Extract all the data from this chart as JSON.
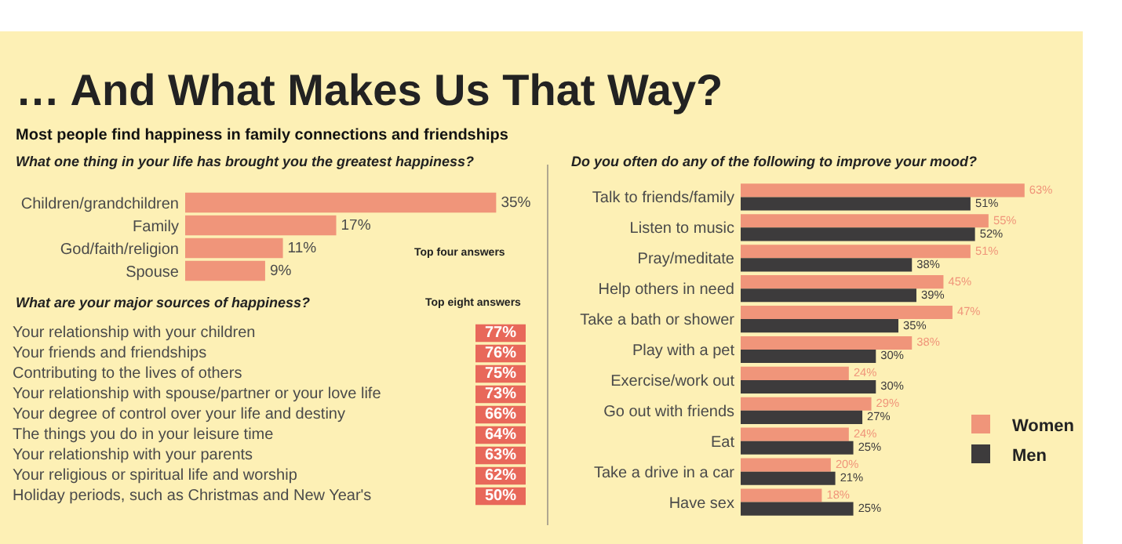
{
  "chart_data": [
    {
      "type": "bar",
      "orientation": "horizontal",
      "title": "… And What Makes Us That Way?",
      "subtitle": "Most people find happiness in family connections and friendships",
      "annotations": [
        "What one thing in your life has brought you the greatest happiness?",
        "Top four answers"
      ],
      "categories": [
        "Children/grandchildren",
        "Family",
        "God/faith/religion",
        "Spouse"
      ],
      "values": [
        35,
        17,
        11,
        9
      ],
      "value_labels": [
        "35%",
        "17%",
        "11%",
        "9%"
      ],
      "color": "#f0957a",
      "tick_labels": "y"
    },
    {
      "type": "other",
      "title": "What are your major sources of happiness?",
      "annotations": [
        "Top eight answers"
      ],
      "categories": [
        "Your relationship with your children",
        "Your friends and friendships",
        "Contributing to the lives of others",
        "Your relationship with spouse/partner or your love life",
        "Your degree of control over your life and destiny",
        "The things you do in your leisure time",
        "Your relationship with your parents",
        "Your religious or spiritual life and worship",
        "Holiday periods, such as Christmas and New Year's"
      ],
      "values": [
        77,
        76,
        75,
        73,
        66,
        64,
        63,
        62,
        50
      ],
      "value_labels": [
        "77%",
        "76%",
        "75%",
        "73%",
        "66%",
        "64%",
        "63%",
        "62%",
        "50%"
      ],
      "color": "#e8685a"
    },
    {
      "type": "bar",
      "orientation": "horizontal",
      "title": "Do you often do any of the following to improve your mood?",
      "categories": [
        "Talk to friends/family",
        "Listen to music",
        "Pray/meditate",
        "Help others in need",
        "Take a bath or shower",
        "Play with a pet",
        "Exercise/work out",
        "Go out with friends",
        "Eat",
        "Take a drive in a car",
        "Have sex"
      ],
      "series": [
        {
          "name": "Women",
          "color": "#f0957a",
          "values": [
            63,
            55,
            51,
            45,
            47,
            38,
            24,
            29,
            24,
            20,
            18
          ],
          "value_labels": [
            "63%",
            "55%",
            "51%",
            "45%",
            "47%",
            "38%",
            "24%",
            "29%",
            "24%",
            "20%",
            "18%"
          ]
        },
        {
          "name": "Men",
          "color": "#3d3b3c",
          "values": [
            51,
            52,
            38,
            39,
            35,
            30,
            30,
            27,
            25,
            21,
            25
          ],
          "value_labels": [
            "51%",
            "52%",
            "38%",
            "39%",
            "35%",
            "30%",
            "30%",
            "27%",
            "25%",
            "21%",
            "25%"
          ]
        }
      ],
      "tick_labels": "y",
      "legend": "right"
    }
  ]
}
